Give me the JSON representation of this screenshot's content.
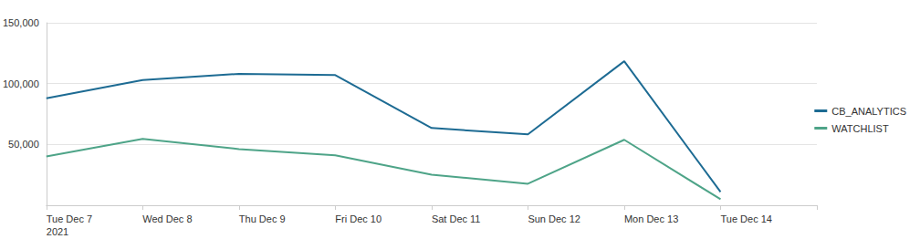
{
  "chart_data": {
    "type": "line",
    "categories": [
      "Tue Dec 7\n2021",
      "Wed Dec 8",
      "Thu Dec 9",
      "Fri Dec 10",
      "Sat Dec 11",
      "Sun Dec 12",
      "Mon Dec 13",
      "Tue Dec 14",
      null
    ],
    "series": [
      {
        "name": "CB_ANALYTICS",
        "color": "#1d6b93",
        "values": [
          88000,
          103000,
          108000,
          107000,
          63500,
          58300,
          118400,
          10900,
          null
        ]
      },
      {
        "name": "WATCHLIST",
        "color": "#4ea488",
        "values": [
          40200,
          54500,
          46200,
          41000,
          25200,
          17700,
          53800,
          4900,
          null
        ]
      }
    ],
    "ylim": [
      0,
      150000
    ],
    "yticks": [
      {
        "value": 50000,
        "label": "50,000"
      },
      {
        "value": 100000,
        "label": "100,000"
      },
      {
        "value": 150000,
        "label": "150,000"
      }
    ],
    "grid": true,
    "legend": "right"
  }
}
